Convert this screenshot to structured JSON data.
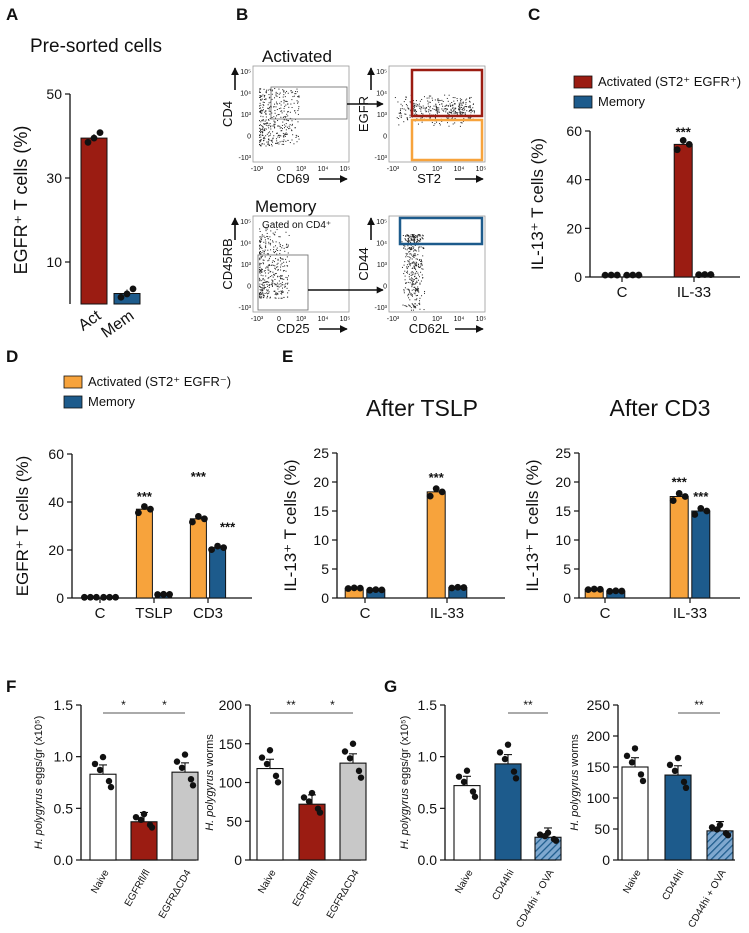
{
  "colors": {
    "act": "#9b1c12",
    "mem": "#1d5b8c",
    "orange": "#f7a33c",
    "gray": "#c8c8c8",
    "white": "#ffffff"
  },
  "panels": {
    "A": {
      "letter": "A",
      "title": "Pre-sorted cells",
      "chart_data": {
        "type": "bar",
        "ylabel": "EGFR⁺ T cells (%)",
        "ylim": [
          0,
          50
        ],
        "yticks": [
          "10",
          "30",
          "50"
        ],
        "categories": [
          "Act",
          "Mem"
        ],
        "values": [
          39.5,
          2.5
        ],
        "points": [
          [
            38.5,
            39.5,
            40.8
          ],
          [
            1.6,
            2.4,
            3.6
          ]
        ],
        "colors": [
          "act",
          "mem"
        ]
      }
    },
    "B": {
      "letter": "B",
      "activated_label": "Activated",
      "memory_label": "Memory",
      "gated_label": "Gated on CD4⁺",
      "plots": [
        {
          "id": "b1",
          "xlabel": "CD69",
          "ylabel": "CD4",
          "xticks": [
            "-10³",
            "0",
            "10³",
            "10⁴",
            "10⁵"
          ],
          "yticks": [
            "10⁵",
            "10⁴",
            "10³",
            "0",
            "-10³"
          ]
        },
        {
          "id": "b2",
          "xlabel": "ST2",
          "ylabel": "EGFR",
          "xticks": [
            "-10³",
            "0",
            "10³",
            "10⁴",
            "10⁵"
          ],
          "yticks": [
            "10⁵",
            "10⁴",
            "10³",
            "0",
            "-10³"
          ]
        },
        {
          "id": "b3",
          "xlabel": "CD25",
          "ylabel": "CD45RB",
          "xticks": [
            "-10³",
            "0",
            "10³",
            "10⁴",
            "10⁵"
          ],
          "yticks": [
            "10⁵",
            "10⁴",
            "10³",
            "0",
            "-10³"
          ]
        },
        {
          "id": "b4",
          "xlabel": "CD62L",
          "ylabel": "CD44",
          "xticks": [
            "-10³",
            "0",
            "10³",
            "10⁴",
            "10⁵"
          ],
          "yticks": [
            "10⁵",
            "10⁴",
            "10³",
            "0",
            "-10³"
          ]
        }
      ]
    },
    "C": {
      "letter": "C",
      "legend": [
        "Activated (ST2⁺ EGFR⁺)",
        "Memory"
      ],
      "chart_data": {
        "type": "bar",
        "ylabel": "IL-13⁺ T cells (%)",
        "ylim": [
          0,
          60
        ],
        "yticks": [
          "0",
          "20",
          "40",
          "60"
        ],
        "categories": [
          "C",
          "IL-33"
        ],
        "series": [
          {
            "name": "Activated (ST2⁺ EGFR⁺)",
            "values": [
              0.8,
              54.5
            ]
          },
          {
            "name": "Memory",
            "values": [
              0.8,
              1.0
            ]
          }
        ],
        "annotations": [
          "",
          "***"
        ]
      }
    },
    "D": {
      "letter": "D",
      "legend": [
        "Activated (ST2⁺ EGFR⁻)",
        "Memory"
      ],
      "chart_data": {
        "type": "bar",
        "ylabel": "EGFR⁺ T cells (%)",
        "ylim": [
          0,
          60
        ],
        "yticks": [
          "0",
          "20",
          "40",
          "60"
        ],
        "categories": [
          "C",
          "TSLP",
          "CD3"
        ],
        "series": [
          {
            "name": "Activated (ST2⁺ EGFR⁻)",
            "values": [
              0.3,
              37,
              33
            ]
          },
          {
            "name": "Memory",
            "values": [
              0.3,
              1.5,
              21
            ]
          }
        ],
        "annotations": [
          [
            "",
            ""
          ],
          [
            "***",
            ""
          ],
          [
            "***",
            "***"
          ]
        ]
      }
    },
    "E": {
      "letter": "E",
      "charts": [
        {
          "title": "After TSLP",
          "ylabel": "IL-13⁺ T cells (%)",
          "ylim": [
            0,
            25
          ],
          "yticks": [
            "0",
            "5",
            "10",
            "15",
            "20",
            "25"
          ],
          "categories": [
            "C",
            "IL-33"
          ],
          "series": [
            {
              "values": [
                1.7,
                18.3
              ]
            },
            {
              "values": [
                1.4,
                1.8
              ]
            }
          ],
          "annotations": [
            [
              "",
              ""
            ],
            [
              "***",
              ""
            ]
          ]
        },
        {
          "title": "After CD3",
          "ylabel": "IL-13⁺ T cells (%)",
          "ylim": [
            0,
            25
          ],
          "yticks": [
            "0",
            "5",
            "10",
            "15",
            "20",
            "25"
          ],
          "categories": [
            "C",
            "IL-33"
          ],
          "series": [
            {
              "values": [
                1.5,
                17.5
              ]
            },
            {
              "values": [
                1.2,
                15
              ]
            }
          ],
          "annotations": [
            [
              "",
              ""
            ],
            [
              "***",
              "***"
            ]
          ]
        }
      ]
    },
    "F": {
      "letter": "F",
      "charts": [
        {
          "ylabel_italic": "H. polygyrus",
          "ylabel_rest": " eggs/gr (x10⁵)",
          "ylim": [
            0,
            1.5
          ],
          "yticks": [
            "0.0",
            "0.5",
            "1.0",
            "1.5"
          ],
          "categories": [
            "Naive",
            "EGFRfl/fl",
            "EGFRΔCD4"
          ],
          "values": [
            0.83,
            0.37,
            0.85
          ],
          "fills": [
            "white",
            "act",
            "gray"
          ],
          "sig": [
            {
              "a": 0,
              "b": 1,
              "label": "*"
            },
            {
              "a": 1,
              "b": 2,
              "label": "*"
            }
          ]
        },
        {
          "ylabel_italic": "H. polygyrus",
          "ylabel_rest": " worms",
          "ylim": [
            0,
            200
          ],
          "yticks": [
            "0",
            "50",
            "100",
            "150",
            "200"
          ],
          "categories": [
            "Naive",
            "EGFRfl/fl",
            "EGFRΔCD4"
          ],
          "values": [
            118,
            72,
            125
          ],
          "fills": [
            "white",
            "act",
            "gray"
          ],
          "sig": [
            {
              "a": 0,
              "b": 1,
              "label": "**"
            },
            {
              "a": 1,
              "b": 2,
              "label": "*"
            }
          ]
        }
      ]
    },
    "G": {
      "letter": "G",
      "charts": [
        {
          "ylabel_italic": "H. polygyrus",
          "ylabel_rest": " eggs/gr (x10⁵)",
          "ylim": [
            0,
            1.5
          ],
          "yticks": [
            "0.0",
            "0.5",
            "1.0",
            "1.5"
          ],
          "categories": [
            "Naive",
            "CD44hi",
            "CD44hi + OVA"
          ],
          "values": [
            0.72,
            0.93,
            0.22
          ],
          "fills": [
            "white",
            "mem",
            "hatch"
          ],
          "sig": [
            {
              "a": 1,
              "b": 2,
              "label": "**"
            }
          ]
        },
        {
          "ylabel_italic": "H. polygyrus",
          "ylabel_rest": " worms",
          "ylim": [
            0,
            250
          ],
          "yticks": [
            "0",
            "50",
            "100",
            "150",
            "200",
            "250"
          ],
          "categories": [
            "Naive",
            "CD44hi",
            "CD44hi + OVA"
          ],
          "values": [
            150,
            137,
            47
          ],
          "fills": [
            "white",
            "mem",
            "hatch"
          ],
          "sig": [
            {
              "a": 1,
              "b": 2,
              "label": "**"
            }
          ]
        }
      ]
    }
  }
}
